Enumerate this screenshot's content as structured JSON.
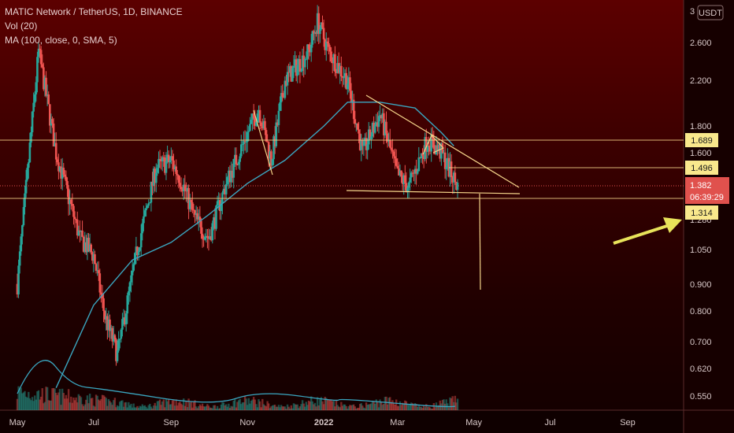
{
  "legend": {
    "title": "MATIC Network / TetherUS, 1D, BINANCE",
    "vol": "Vol (20)",
    "ma": "MA (100, close, 0, SMA, 5)"
  },
  "currency": "USDT",
  "chart_data": {
    "type": "candlestick",
    "x_ticks": [
      "May",
      "Jul",
      "Sep",
      "Nov",
      "2022",
      "Mar",
      "May",
      "Jul",
      "Sep"
    ],
    "y_ticks": [
      "3",
      "2.600",
      "2.200",
      "1.800",
      "1.600",
      "1.280",
      "1.050",
      "0.900",
      "0.800",
      "0.700",
      "0.620",
      "0.550"
    ],
    "y_scale": "log",
    "ylim": [
      0.5,
      3.0
    ],
    "last_price": "1.382",
    "countdown": "06:39:29",
    "horizontal_levels": [
      {
        "label": "1.689",
        "value": 1.689
      },
      {
        "label": "1.496",
        "value": 1.496
      },
      {
        "label": "1.314",
        "value": 1.314
      }
    ],
    "close_series": [
      {
        "date": "2021-05-01",
        "close": 0.9
      },
      {
        "date": "2021-05-18",
        "close": 2.5
      },
      {
        "date": "2021-06-01",
        "close": 1.6
      },
      {
        "date": "2021-06-20",
        "close": 1.1
      },
      {
        "date": "2021-07-01",
        "close": 1.02
      },
      {
        "date": "2021-07-10",
        "close": 0.78
      },
      {
        "date": "2021-07-20",
        "close": 0.66
      },
      {
        "date": "2021-08-05",
        "close": 1.05
      },
      {
        "date": "2021-08-20",
        "close": 1.5
      },
      {
        "date": "2021-09-01",
        "close": 1.55
      },
      {
        "date": "2021-09-10",
        "close": 1.4
      },
      {
        "date": "2021-09-20",
        "close": 1.2
      },
      {
        "date": "2021-10-01",
        "close": 1.1
      },
      {
        "date": "2021-10-15",
        "close": 1.4
      },
      {
        "date": "2021-10-30",
        "close": 1.7
      },
      {
        "date": "2021-11-10",
        "close": 1.95
      },
      {
        "date": "2021-11-20",
        "close": 1.55
      },
      {
        "date": "2021-12-01",
        "close": 2.2
      },
      {
        "date": "2021-12-20",
        "close": 2.5
      },
      {
        "date": "2021-12-27",
        "close": 2.85
      },
      {
        "date": "2022-01-05",
        "close": 2.5
      },
      {
        "date": "2022-01-20",
        "close": 2.2
      },
      {
        "date": "2022-02-01",
        "close": 1.6
      },
      {
        "date": "2022-02-15",
        "close": 1.9
      },
      {
        "date": "2022-03-01",
        "close": 1.45
      },
      {
        "date": "2022-03-10",
        "close": 1.38
      },
      {
        "date": "2022-03-25",
        "close": 1.7
      },
      {
        "date": "2022-04-05",
        "close": 1.6
      },
      {
        "date": "2022-04-18",
        "close": 1.38
      }
    ],
    "ma_series": [
      {
        "date": "2021-06-01",
        "value": 0.57
      },
      {
        "date": "2021-07-01",
        "value": 0.82
      },
      {
        "date": "2021-08-01",
        "value": 1.0
      },
      {
        "date": "2021-09-01",
        "value": 1.08
      },
      {
        "date": "2021-10-01",
        "value": 1.22
      },
      {
        "date": "2021-11-01",
        "value": 1.4
      },
      {
        "date": "2021-12-01",
        "value": 1.55
      },
      {
        "date": "2022-01-01",
        "value": 1.8
      },
      {
        "date": "2022-01-20",
        "value": 2.0
      },
      {
        "date": "2022-02-15",
        "value": 2.0
      },
      {
        "date": "2022-03-15",
        "value": 1.95
      },
      {
        "date": "2022-04-05",
        "value": 1.75
      },
      {
        "date": "2022-04-15",
        "value": 1.65
      }
    ]
  },
  "colors": {
    "up": "#26a69a",
    "down": "#ef5350",
    "ma": "#3aa6c0",
    "drawing": "#f5d58a",
    "level_tag": "#f9e88c",
    "price_tag": "#e0514d",
    "arrow": "#e8e35a"
  }
}
